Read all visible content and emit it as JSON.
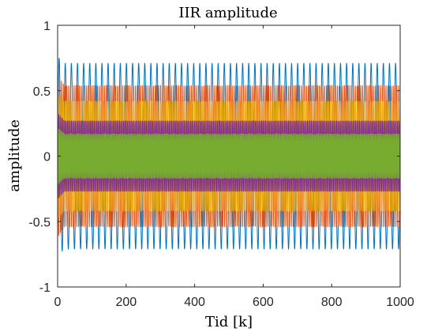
{
  "chart_data": {
    "type": "line",
    "title": "IIR amplitude",
    "xlabel": "Tid [k]",
    "ylabel": "amplitude",
    "xlim": [
      0,
      1000
    ],
    "ylim": [
      -1,
      1
    ],
    "xticks": [
      0,
      200,
      400,
      600,
      800,
      1000
    ],
    "xtick_labels": [
      "0",
      "200",
      "400",
      "600",
      "800",
      "1000"
    ],
    "yticks": [
      -1,
      -0.5,
      0,
      0.5,
      1
    ],
    "ytick_labels": [
      "-1",
      "-0.5",
      "0",
      "0.5",
      "1"
    ],
    "grid": false,
    "legend": "none",
    "series": [
      {
        "color": "#0072BD",
        "amplitude": 0.71,
        "cycles": 56,
        "peak_start": 0.76
      },
      {
        "color": "#D95319",
        "amplitude": 0.54,
        "cycles": 190,
        "peak_start": 0.62
      },
      {
        "color": "#EDB120",
        "amplitude": 0.42,
        "cycles": 230,
        "peak_start": 0.48
      },
      {
        "color": "#7E2F8E",
        "amplitude": 0.27,
        "cycles": 270,
        "peak_start": 0.33
      },
      {
        "color": "#77AC30",
        "amplitude": 0.17,
        "cycles": 320,
        "peak_start": 0.22
      }
    ]
  }
}
